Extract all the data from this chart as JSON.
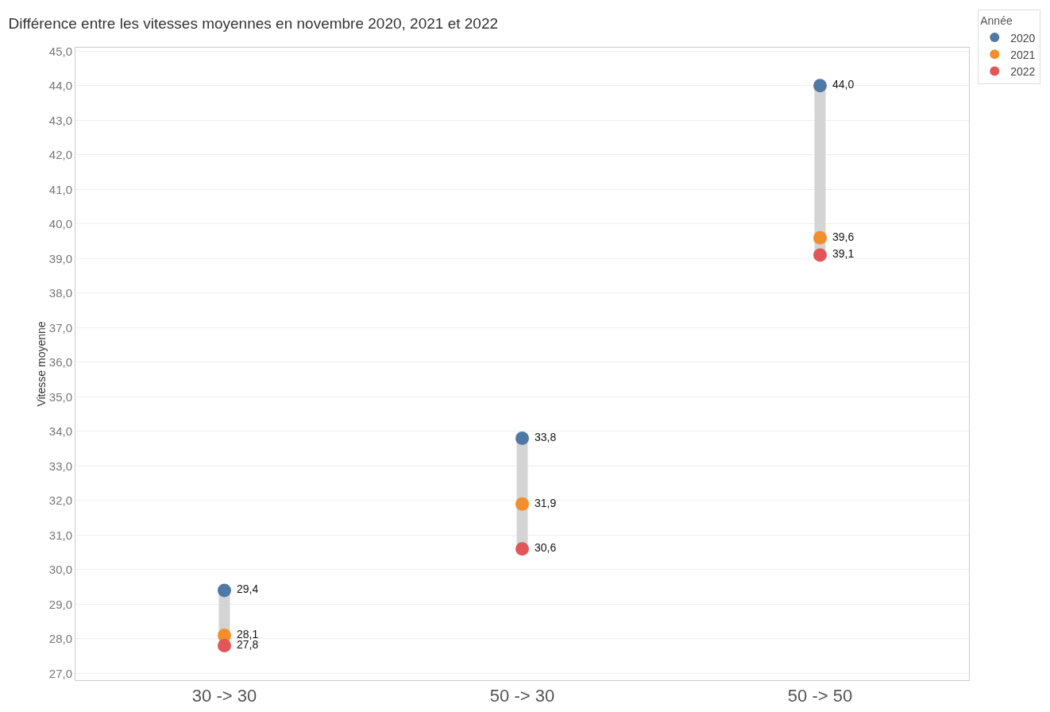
{
  "chart_data": {
    "type": "scatter",
    "title": "Différence entre les vitesses moyennes en novembre 2020, 2021 et 2022",
    "ylabel": "Vitesse moyenne",
    "legend_title": "Année",
    "categories": [
      "30 -> 30",
      "50 -> 30",
      "50 -> 50"
    ],
    "series": [
      {
        "type": "line",
        "color": "#d4d4d4",
        "marker": "none",
        "x": [
          "30 -> 30",
          "30 -> 30"
        ],
        "values": [
          27.8,
          29.4
        ]
      },
      {
        "type": "line",
        "color": "#d4d4d4",
        "marker": "none",
        "x": [
          "50 -> 30",
          "50 -> 30"
        ],
        "values": [
          30.6,
          33.8
        ]
      },
      {
        "type": "line",
        "color": "#d4d4d4",
        "marker": "none",
        "x": [
          "50 -> 50",
          "50 -> 50"
        ],
        "values": [
          39.1,
          44.0
        ]
      },
      {
        "name": "2020",
        "color": "#4e79a7",
        "values": [
          29.4,
          33.8,
          44.0
        ],
        "value_labels": [
          "29,4",
          "33,8",
          "44,0"
        ]
      },
      {
        "name": "2021",
        "color": "#f28e2b",
        "values": [
          28.1,
          31.9,
          39.6
        ],
        "value_labels": [
          "28,1",
          "31,9",
          "39,6"
        ]
      },
      {
        "name": "2022",
        "color": "#e15759",
        "values": [
          27.8,
          30.6,
          39.1
        ],
        "value_labels": [
          "27,8",
          "30,6",
          "39,1"
        ]
      }
    ],
    "ylim": [
      26.8,
      45.1
    ],
    "yticks": [
      {
        "value": 27,
        "label": "27,0"
      },
      {
        "value": 28,
        "label": "28,0"
      },
      {
        "value": 29,
        "label": "29,0"
      },
      {
        "value": 30,
        "label": "30,0"
      },
      {
        "value": 31,
        "label": "31,0"
      },
      {
        "value": 32,
        "label": "32,0"
      },
      {
        "value": 33,
        "label": "33,0"
      },
      {
        "value": 34,
        "label": "34,0"
      },
      {
        "value": 35,
        "label": "35,0"
      },
      {
        "value": 36,
        "label": "36,0"
      },
      {
        "value": 37,
        "label": "37,0"
      },
      {
        "value": 38,
        "label": "38,0"
      },
      {
        "value": 39,
        "label": "39,0"
      },
      {
        "value": 40,
        "label": "40,0"
      },
      {
        "value": 41,
        "label": "41,0"
      },
      {
        "value": 42,
        "label": "42,0"
      },
      {
        "value": 43,
        "label": "43,0"
      },
      {
        "value": 44,
        "label": "44,0"
      },
      {
        "value": 45,
        "label": "45,0"
      }
    ],
    "grid": "y",
    "legend": "top right",
    "marker": "circle"
  }
}
